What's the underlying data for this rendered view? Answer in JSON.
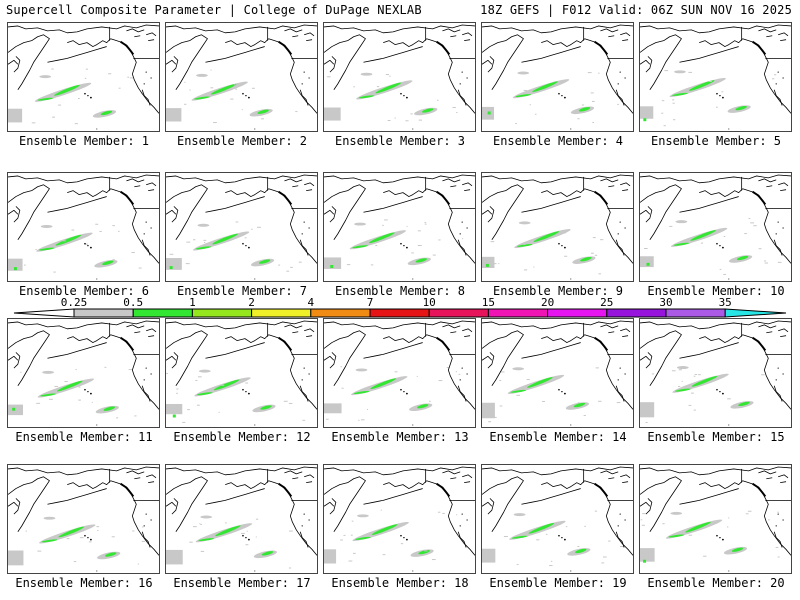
{
  "header": {
    "title": "Supercell Composite Parameter | College of DuPage NEXLAB",
    "run_info": "18Z GEFS | F012 Valid: 06Z SUN NOV 16 2025"
  },
  "colorbar": {
    "ticks": [
      "0.25",
      "0.5",
      "1",
      "2",
      "4",
      "7",
      "10",
      "15",
      "20",
      "25",
      "30",
      "35"
    ],
    "colors": [
      "#c8c8c8",
      "#32e632",
      "#96e61e",
      "#f0f028",
      "#f08c14",
      "#e61414",
      "#e6145a",
      "#f014b4",
      "#e614f0",
      "#9614dc",
      "#aa5ae6",
      "#28e6e6"
    ]
  },
  "members": [
    {
      "label": "Ensemble Member: 1"
    },
    {
      "label": "Ensemble Member: 2"
    },
    {
      "label": "Ensemble Member: 3"
    },
    {
      "label": "Ensemble Member: 4"
    },
    {
      "label": "Ensemble Member: 5"
    },
    {
      "label": "Ensemble Member: 6"
    },
    {
      "label": "Ensemble Member: 7"
    },
    {
      "label": "Ensemble Member: 8"
    },
    {
      "label": "Ensemble Member: 9"
    },
    {
      "label": "Ensemble Member: 10"
    },
    {
      "label": "Ensemble Member: 11"
    },
    {
      "label": "Ensemble Member: 12"
    },
    {
      "label": "Ensemble Member: 13"
    },
    {
      "label": "Ensemble Member: 14"
    },
    {
      "label": "Ensemble Member: 15"
    },
    {
      "label": "Ensemble Member: 16"
    },
    {
      "label": "Ensemble Member: 17"
    },
    {
      "label": "Ensemble Member: 18"
    },
    {
      "label": "Ensemble Member: 19"
    },
    {
      "label": "Ensemble Member: 20"
    }
  ]
}
